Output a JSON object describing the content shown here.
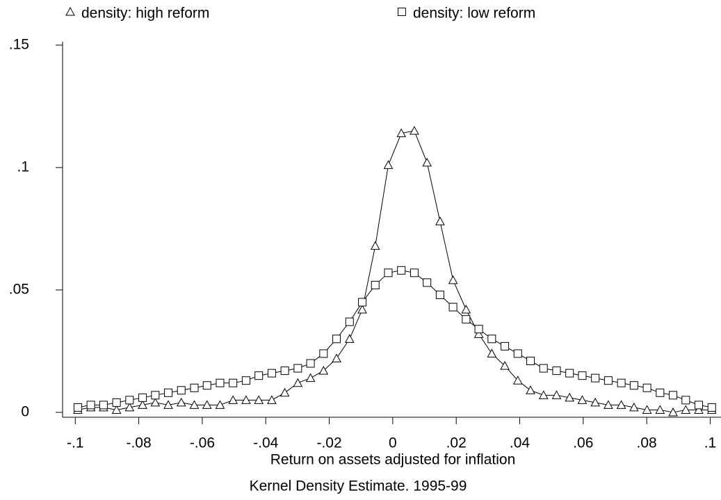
{
  "chart_data": {
    "type": "line",
    "xlabel": "Return on assets adjusted for inflation",
    "caption": "Kernel Density Estimate. 1995-99",
    "x": [
      -0.0992,
      -0.0951,
      -0.0911,
      -0.087,
      -0.0829,
      -0.0788,
      -0.0748,
      -0.0707,
      -0.0666,
      -0.0625,
      -0.0585,
      -0.0544,
      -0.0503,
      -0.0462,
      -0.0422,
      -0.0381,
      -0.034,
      -0.0299,
      -0.0259,
      -0.0218,
      -0.0177,
      -0.0136,
      -0.0096,
      -0.0055,
      -0.0014,
      0.0027,
      0.0068,
      0.0108,
      0.0149,
      0.019,
      0.0231,
      0.0271,
      0.0312,
      0.0353,
      0.0394,
      0.0434,
      0.0475,
      0.0516,
      0.0557,
      0.0597,
      0.0638,
      0.0679,
      0.072,
      0.076,
      0.0801,
      0.0842,
      0.0883,
      0.0923,
      0.0964,
      0.1005
    ],
    "series": [
      {
        "name": "density: high reform",
        "marker": "triangle",
        "color": "#000000",
        "values": [
          0.001,
          0.002,
          0.002,
          0.001,
          0.002,
          0.003,
          0.004,
          0.003,
          0.004,
          0.003,
          0.003,
          0.003,
          0.005,
          0.005,
          0.005,
          0.005,
          0.008,
          0.012,
          0.014,
          0.017,
          0.022,
          0.03,
          0.042,
          0.068,
          0.101,
          0.114,
          0.115,
          0.102,
          0.078,
          0.054,
          0.042,
          0.032,
          0.024,
          0.019,
          0.013,
          0.009,
          0.007,
          0.007,
          0.006,
          0.005,
          0.004,
          0.003,
          0.003,
          0.002,
          0.001,
          0.001,
          0.0,
          0.001,
          0.001,
          0.001
        ]
      },
      {
        "name": "density: low reform",
        "marker": "square",
        "color": "#000000",
        "values": [
          0.002,
          0.003,
          0.003,
          0.004,
          0.005,
          0.006,
          0.007,
          0.008,
          0.009,
          0.01,
          0.011,
          0.012,
          0.012,
          0.013,
          0.015,
          0.016,
          0.017,
          0.018,
          0.02,
          0.024,
          0.03,
          0.037,
          0.045,
          0.052,
          0.057,
          0.058,
          0.057,
          0.053,
          0.048,
          0.043,
          0.038,
          0.034,
          0.03,
          0.027,
          0.024,
          0.021,
          0.018,
          0.017,
          0.016,
          0.015,
          0.014,
          0.013,
          0.012,
          0.011,
          0.01,
          0.008,
          0.007,
          0.005,
          0.003,
          0.002
        ]
      }
    ],
    "xlim": [
      -0.104,
      0.1034
    ],
    "ylim": [
      -0.002,
      0.1514
    ],
    "xticks": [
      {
        "value": -0.1,
        "label": "-.1"
      },
      {
        "value": -0.08,
        "label": "-.08"
      },
      {
        "value": -0.06,
        "label": "-.06"
      },
      {
        "value": -0.04,
        "label": "-.04"
      },
      {
        "value": -0.02,
        "label": "-.02"
      },
      0,
      {
        "value": 0.02,
        "label": ".02"
      },
      {
        "value": 0.04,
        "label": ".04"
      },
      {
        "value": 0.06,
        "label": ".06"
      },
      {
        "value": 0.08,
        "label": ".08"
      },
      {
        "value": 0.1,
        "label": ".1"
      }
    ],
    "yticks": [
      0,
      {
        "value": 0.05,
        "label": ".05"
      },
      {
        "value": 0.1,
        "label": ".1"
      },
      {
        "value": 0.15,
        "label": ".15"
      }
    ],
    "grid": false,
    "legend": "top"
  }
}
